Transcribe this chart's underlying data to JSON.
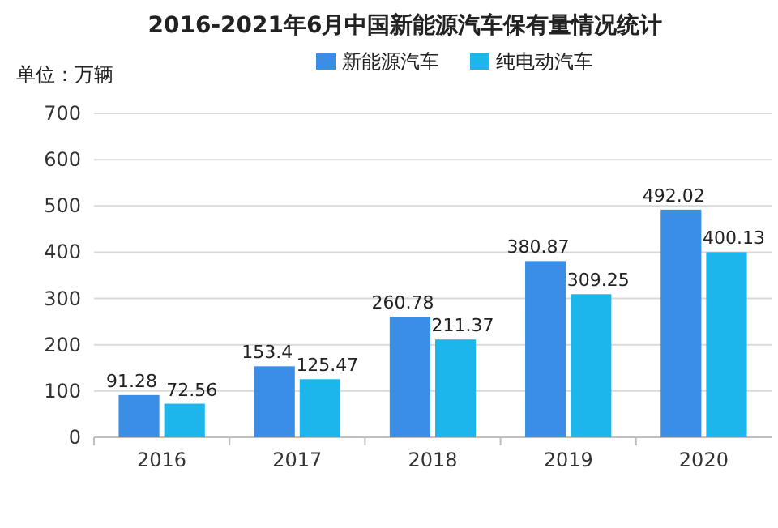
{
  "chart_data": {
    "type": "bar",
    "title": "2016-2021年6月中国新能源汽车保有量情况统计",
    "ylabel": "单位：万辆",
    "categories": [
      "2016",
      "2017",
      "2018",
      "2019",
      "2020"
    ],
    "series": [
      {
        "name": "新能源汽车",
        "color": "#3a8ee6",
        "values": [
          91.28,
          153.4,
          260.78,
          380.87,
          492.02
        ]
      },
      {
        "name": "纯电动汽车",
        "color": "#1cb5ec",
        "values": [
          72.56,
          125.47,
          211.37,
          309.25,
          400.13
        ]
      }
    ],
    "ylim": [
      0,
      700
    ],
    "yticks": [
      0,
      100,
      200,
      300,
      400,
      500,
      600,
      700
    ],
    "grid": "y",
    "legend": "top",
    "data_labels": true
  }
}
